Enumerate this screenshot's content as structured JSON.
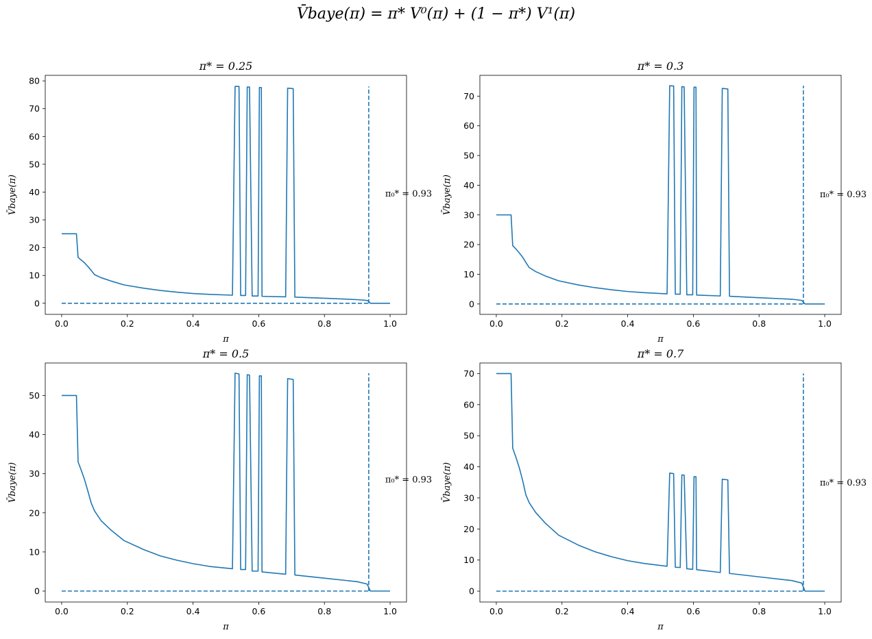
{
  "figure": {
    "suptitle": "V̄baye(π) = π* V⁰(π) + (1 − π*) V¹(π)"
  },
  "style": {
    "line_color": "#1f77b4"
  },
  "chart_data": [
    {
      "type": "line",
      "title": "π* = 0.25",
      "xlabel": "π",
      "ylabel": "V̄baye(π)",
      "xlim": [
        -0.05,
        1.05
      ],
      "ylim": [
        -4,
        82
      ],
      "xticks": [
        0.0,
        0.2,
        0.4,
        0.6,
        0.8,
        1.0
      ],
      "xtick_labels": [
        "0.0",
        "0.2",
        "0.4",
        "0.6",
        "0.8",
        "1.0"
      ],
      "yticks": [
        0,
        10,
        20,
        30,
        40,
        50,
        60,
        70,
        80
      ],
      "ytick_labels": [
        "0",
        "10",
        "20",
        "30",
        "40",
        "50",
        "60",
        "70",
        "80"
      ],
      "series": [
        {
          "style": "solid",
          "x": [
            0,
            0.045,
            0.05,
            0.06,
            0.07,
            0.08,
            0.09,
            0.1,
            0.12,
            0.15,
            0.19,
            0.25,
            0.3,
            0.35,
            0.4,
            0.45,
            0.52,
            0.528,
            0.54,
            0.545,
            0.56,
            0.565,
            0.572,
            0.58,
            0.598,
            0.602,
            0.608,
            0.61,
            0.682,
            0.688,
            0.705,
            0.71,
            0.8,
            0.9,
            0.93,
            0.935,
            0.94,
            1.0
          ],
          "y": [
            25,
            25,
            16.5,
            15.5,
            14.5,
            13.2,
            11.8,
            10.3,
            9.2,
            8.0,
            6.6,
            5.4,
            4.6,
            4.0,
            3.5,
            3.2,
            2.9,
            78,
            78,
            2.8,
            2.8,
            77.8,
            77.8,
            2.6,
            2.6,
            77.6,
            77.6,
            2.5,
            2.3,
            77.4,
            77.2,
            2.2,
            1.8,
            1.3,
            1.0,
            0.6,
            0,
            0
          ]
        },
        {
          "style": "dashed",
          "x": [
            0,
            0.935
          ],
          "y": [
            0,
            0
          ]
        },
        {
          "style": "dashed",
          "x": [
            0.935,
            0.935
          ],
          "y": [
            0,
            78
          ]
        }
      ],
      "annotation": {
        "text": "π₀* = 0.93",
        "x": 0.985,
        "y": 39.5
      }
    },
    {
      "type": "line",
      "title": "π* = 0.3",
      "xlabel": "π",
      "ylabel": "V̄baye(π)",
      "xlim": [
        -0.05,
        1.05
      ],
      "ylim": [
        -3.5,
        77
      ],
      "xticks": [
        0.0,
        0.2,
        0.4,
        0.6,
        0.8,
        1.0
      ],
      "xtick_labels": [
        "0.0",
        "0.2",
        "0.4",
        "0.6",
        "0.8",
        "1.0"
      ],
      "yticks": [
        0,
        10,
        20,
        30,
        40,
        50,
        60,
        70
      ],
      "ytick_labels": [
        "0",
        "10",
        "20",
        "30",
        "40",
        "50",
        "60",
        "70"
      ],
      "series": [
        {
          "style": "solid",
          "x": [
            0,
            0.045,
            0.05,
            0.06,
            0.07,
            0.08,
            0.09,
            0.1,
            0.12,
            0.15,
            0.19,
            0.25,
            0.3,
            0.35,
            0.4,
            0.45,
            0.52,
            0.528,
            0.54,
            0.545,
            0.56,
            0.565,
            0.572,
            0.58,
            0.598,
            0.602,
            0.608,
            0.61,
            0.682,
            0.688,
            0.705,
            0.71,
            0.8,
            0.9,
            0.93,
            0.935,
            0.94,
            1.0
          ],
          "y": [
            30,
            30,
            19.6,
            18.5,
            17.2,
            15.8,
            14.0,
            12.3,
            10.9,
            9.4,
            7.8,
            6.4,
            5.5,
            4.8,
            4.2,
            3.8,
            3.4,
            73.5,
            73.4,
            3.3,
            3.3,
            73.2,
            73.1,
            3.1,
            3.1,
            73.0,
            73.0,
            3.0,
            2.7,
            72.6,
            72.4,
            2.6,
            2.1,
            1.6,
            1.2,
            0.6,
            0,
            0
          ]
        },
        {
          "style": "dashed",
          "x": [
            0,
            0.935
          ],
          "y": [
            0,
            0
          ]
        },
        {
          "style": "dashed",
          "x": [
            0.935,
            0.935
          ],
          "y": [
            0,
            73.5
          ]
        }
      ],
      "annotation": {
        "text": "π₀* = 0.93",
        "x": 0.985,
        "y": 37.0
      }
    },
    {
      "type": "line",
      "title": "π* = 0.5",
      "xlabel": "π",
      "ylabel": "V̄baye(π)",
      "xlim": [
        -0.05,
        1.05
      ],
      "ylim": [
        -2.8,
        58.3
      ],
      "xticks": [
        0.0,
        0.2,
        0.4,
        0.6,
        0.8,
        1.0
      ],
      "xtick_labels": [
        "0.0",
        "0.2",
        "0.4",
        "0.6",
        "0.8",
        "1.0"
      ],
      "yticks": [
        0,
        10,
        20,
        30,
        40,
        50
      ],
      "ytick_labels": [
        "0",
        "10",
        "20",
        "30",
        "40",
        "50"
      ],
      "series": [
        {
          "style": "solid",
          "x": [
            0,
            0.045,
            0.05,
            0.06,
            0.07,
            0.08,
            0.09,
            0.1,
            0.12,
            0.15,
            0.19,
            0.25,
            0.3,
            0.35,
            0.4,
            0.45,
            0.52,
            0.528,
            0.54,
            0.545,
            0.56,
            0.565,
            0.572,
            0.58,
            0.598,
            0.602,
            0.608,
            0.61,
            0.682,
            0.688,
            0.705,
            0.71,
            0.8,
            0.9,
            0.93,
            0.935,
            0.94,
            1.0
          ],
          "y": [
            50,
            50,
            33,
            30.8,
            28.4,
            25.5,
            22.5,
            20.5,
            18.0,
            15.6,
            12.9,
            10.6,
            9.0,
            7.9,
            7.0,
            6.3,
            5.7,
            55.7,
            55.5,
            5.5,
            5.5,
            55.3,
            55.2,
            5.1,
            5.1,
            55.0,
            55.0,
            4.9,
            4.3,
            54.3,
            54.1,
            4.1,
            3.3,
            2.4,
            1.8,
            0.9,
            0,
            0
          ]
        },
        {
          "style": "dashed",
          "x": [
            0,
            0.935
          ],
          "y": [
            0,
            0
          ]
        },
        {
          "style": "dashed",
          "x": [
            0.935,
            0.935
          ],
          "y": [
            0,
            55.7
          ]
        }
      ],
      "annotation": {
        "text": "π₀* = 0.93",
        "x": 0.985,
        "y": 28.5
      }
    },
    {
      "type": "line",
      "title": "π* = 0.7",
      "xlabel": "π",
      "ylabel": "V̄baye(π)",
      "xlim": [
        -0.05,
        1.05
      ],
      "ylim": [
        -3.5,
        73.4
      ],
      "xticks": [
        0.0,
        0.2,
        0.4,
        0.6,
        0.8,
        1.0
      ],
      "xtick_labels": [
        "0.0",
        "0.2",
        "0.4",
        "0.6",
        "0.8",
        "1.0"
      ],
      "yticks": [
        0,
        10,
        20,
        30,
        40,
        50,
        60,
        70
      ],
      "ytick_labels": [
        "0",
        "10",
        "20",
        "30",
        "40",
        "50",
        "60",
        "70"
      ],
      "series": [
        {
          "style": "solid",
          "x": [
            0,
            0.045,
            0.05,
            0.06,
            0.07,
            0.08,
            0.09,
            0.1,
            0.12,
            0.15,
            0.19,
            0.25,
            0.3,
            0.35,
            0.4,
            0.45,
            0.52,
            0.528,
            0.54,
            0.545,
            0.56,
            0.565,
            0.572,
            0.58,
            0.598,
            0.602,
            0.608,
            0.61,
            0.682,
            0.688,
            0.705,
            0.71,
            0.8,
            0.9,
            0.93,
            0.935,
            0.94,
            1.0
          ],
          "y": [
            70,
            70,
            46,
            43.0,
            39.7,
            35.7,
            31.0,
            28.5,
            25.3,
            21.8,
            18.0,
            14.8,
            12.7,
            11.1,
            9.8,
            8.9,
            8.0,
            38,
            37.8,
            7.7,
            7.6,
            37.4,
            37.3,
            7.2,
            7.0,
            36.8,
            36.8,
            6.9,
            6.0,
            36.0,
            35.8,
            5.7,
            4.6,
            3.4,
            2.6,
            1.3,
            0,
            0
          ]
        },
        {
          "style": "dashed",
          "x": [
            0,
            0.935
          ],
          "y": [
            0,
            0
          ]
        },
        {
          "style": "dashed",
          "x": [
            0.935,
            0.935
          ],
          "y": [
            0,
            70
          ]
        }
      ],
      "annotation": {
        "text": "π₀* = 0.93",
        "x": 0.985,
        "y": 35.0
      }
    }
  ]
}
